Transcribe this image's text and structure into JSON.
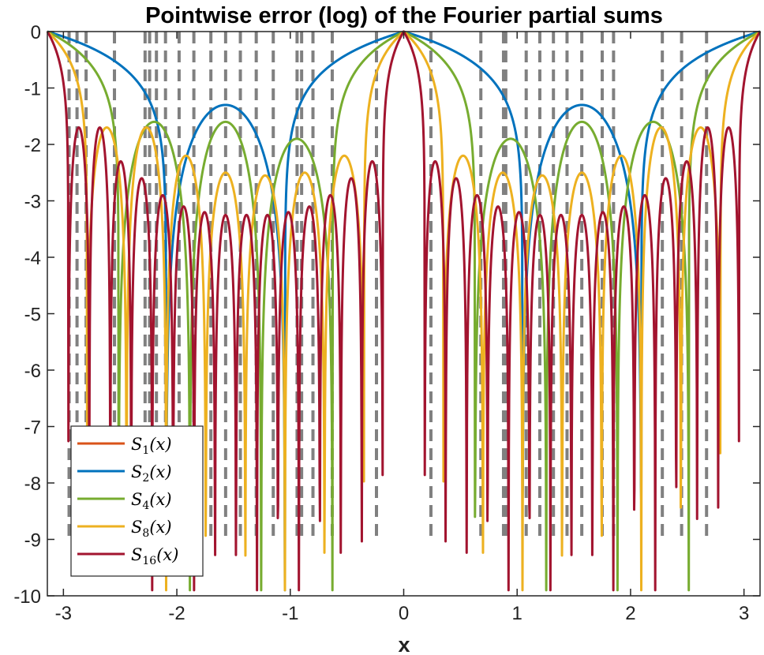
{
  "chart_data": {
    "type": "line",
    "title": "Pointwise error (log) of the Fourier partial sums",
    "xlabel": "x",
    "ylabel": "",
    "xlim": [
      -3.1416,
      3.1416
    ],
    "ylim": [
      -10,
      0
    ],
    "x_ticks": [
      -3,
      -2,
      -1,
      0,
      1,
      2,
      3
    ],
    "x_tick_labels": [
      "-3",
      "-2",
      "-1",
      "0",
      "1",
      "2",
      "3"
    ],
    "y_ticks": [
      0,
      -1,
      -2,
      -3,
      -4,
      -5,
      -6,
      -7,
      -8,
      -9,
      -10
    ],
    "y_tick_labels": [
      "0",
      "-1",
      "-2",
      "-3",
      "-4",
      "-5",
      "-6",
      "-7",
      "-8",
      "-9",
      "-10"
    ],
    "grid": false,
    "legend_position": "bottom-left",
    "series": [
      {
        "name": "S",
        "sub": "1",
        "tail": "(x)",
        "N": 1,
        "color": "#d95319",
        "visible": false
      },
      {
        "name": "S",
        "sub": "2",
        "tail": "(x)",
        "N": 2,
        "color": "#0072bd",
        "visible": true,
        "peaks": [
          -1.3,
          -1.3
        ],
        "minima_x": [
          -2.24,
          -0.9,
          0.9,
          2.24
        ],
        "minima_y": [
          -9.4,
          -8.9,
          -8.7,
          -9.4
        ]
      },
      {
        "name": "S",
        "sub": "4",
        "tail": "(x)",
        "N": 4,
        "color": "#77ac30",
        "visible": true,
        "peaks": [
          -1.6,
          -1.9,
          -1.6
        ],
        "minima_y": [
          -7.0,
          -6.6,
          -9.9,
          -8.8,
          -8.8,
          -9.5,
          -9.4,
          -8.3
        ]
      },
      {
        "name": "S",
        "sub": "8",
        "tail": "(x)",
        "N": 8,
        "color": "#edb120",
        "visible": true,
        "peaks": [
          -1.7,
          -2.2,
          -2.5,
          -2.55,
          -2.5,
          -2.2,
          -1.7
        ],
        "minima_y": [
          -7.2,
          -7.5,
          -8.8,
          -8.7,
          -8.3,
          -8.0,
          -9.2,
          -9.5,
          -8.0
        ]
      },
      {
        "name": "S",
        "sub": "16",
        "tail": "(x)",
        "N": 16,
        "color": "#a2142f",
        "visible": true,
        "peaks": [
          -1.7,
          -2.3,
          -2.6,
          -2.9,
          -3.1,
          -3.2,
          -3.25,
          -3.25,
          -3.25,
          -3.2,
          -3.1,
          -2.9,
          -2.6,
          -2.3,
          -1.7
        ],
        "minima_y": [
          -9.2,
          -8.7,
          -8.5,
          -8.7,
          -8.6,
          -8.2,
          -8.7,
          -7.9,
          -8.8,
          -8.7,
          -9.5,
          -9.3,
          -8.8,
          -9.5,
          -9.3,
          -7.6
        ]
      }
    ],
    "vertical_dashed_lines": {
      "color": "#808080",
      "x": [
        -2.95,
        -2.88,
        -2.8,
        -2.55,
        -2.28,
        -2.24,
        -2.18,
        -2.1,
        -1.98,
        -1.85,
        -1.7,
        -1.57,
        -1.44,
        -1.3,
        -1.15,
        -0.94,
        -0.9,
        -0.8,
        -0.63,
        -0.24,
        0.24,
        0.68,
        0.88,
        0.9,
        1.08,
        1.2,
        1.32,
        1.44,
        1.57,
        1.75,
        1.85,
        2.28,
        2.45,
        2.67
      ],
      "bottom_y": -9.0
    }
  }
}
